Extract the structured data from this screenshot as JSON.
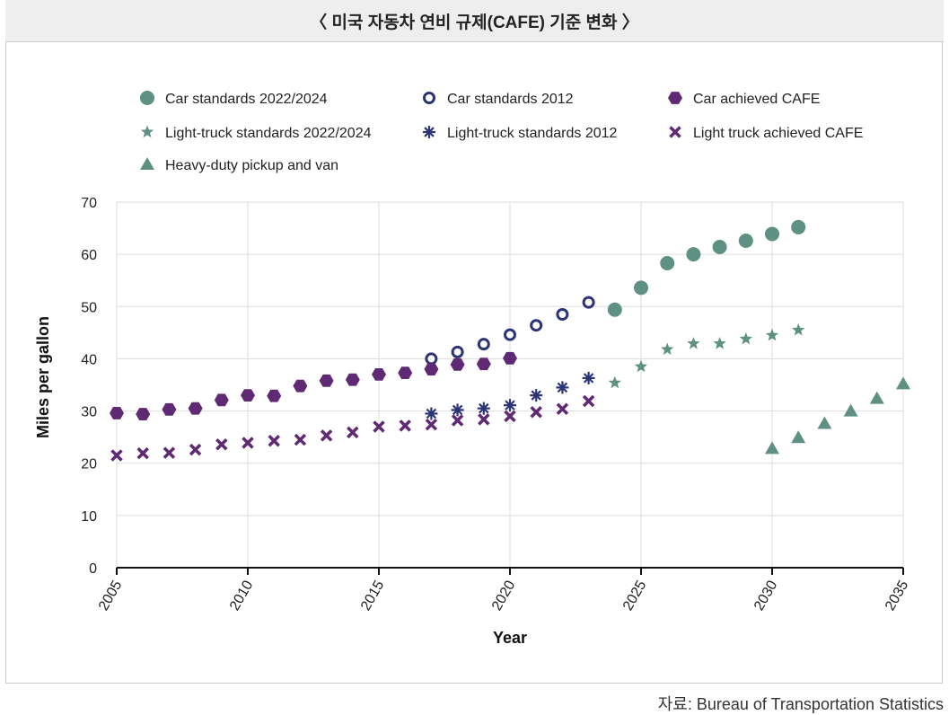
{
  "header": {
    "title": "〈 미국 자동차 연비 규제(CAFE) 기준 변화 〉"
  },
  "source": {
    "text": "자료: Bureau of Transportation Statistics"
  },
  "colors": {
    "teal": "#5e9183",
    "navy": "#2b3576",
    "purple": "#5f2a73",
    "grid": "#dddddd",
    "axis": "#111111"
  },
  "chart_data": {
    "type": "scatter",
    "title": "",
    "xlabel": "Year",
    "ylabel": "Miles per gallon",
    "xlim": [
      2005,
      2035
    ],
    "ylim": [
      0,
      70
    ],
    "xticks": [
      2005,
      2010,
      2015,
      2020,
      2025,
      2030,
      2035
    ],
    "yticks": [
      0,
      10,
      20,
      30,
      40,
      50,
      60,
      70
    ],
    "grid": true,
    "legend_placement": "top",
    "series": [
      {
        "name": "Car standards 2022/2024",
        "marker": "circle-filled",
        "color": "#5e9183",
        "points": [
          [
            2024,
            49.4
          ],
          [
            2025,
            53.6
          ],
          [
            2026,
            58.3
          ],
          [
            2027,
            60.0
          ],
          [
            2028,
            61.4
          ],
          [
            2029,
            62.6
          ],
          [
            2030,
            63.9
          ],
          [
            2031,
            65.2
          ]
        ]
      },
      {
        "name": "Car standards 2012",
        "marker": "circle-open",
        "color": "#2b3576",
        "points": [
          [
            2017,
            40.0
          ],
          [
            2018,
            41.3
          ],
          [
            2019,
            42.8
          ],
          [
            2020,
            44.6
          ],
          [
            2021,
            46.4
          ],
          [
            2022,
            48.5
          ],
          [
            2023,
            50.8
          ]
        ]
      },
      {
        "name": "Car achieved CAFE",
        "marker": "hexagon-filled",
        "color": "#5f2a73",
        "points": [
          [
            2005,
            29.6
          ],
          [
            2006,
            29.4
          ],
          [
            2007,
            30.3
          ],
          [
            2008,
            30.5
          ],
          [
            2009,
            32.1
          ],
          [
            2010,
            33.0
          ],
          [
            2011,
            32.9
          ],
          [
            2012,
            34.8
          ],
          [
            2013,
            35.8
          ],
          [
            2014,
            36.0
          ],
          [
            2015,
            37.0
          ],
          [
            2016,
            37.3
          ],
          [
            2017,
            38.0
          ],
          [
            2018,
            38.9
          ],
          [
            2019,
            39.0
          ],
          [
            2020,
            40.1
          ]
        ]
      },
      {
        "name": "Light-truck standards 2022/2024",
        "marker": "star",
        "color": "#5e9183",
        "points": [
          [
            2024,
            35.4
          ],
          [
            2025,
            38.5
          ],
          [
            2026,
            41.8
          ],
          [
            2027,
            42.9
          ],
          [
            2028,
            42.9
          ],
          [
            2029,
            43.8
          ],
          [
            2030,
            44.5
          ],
          [
            2031,
            45.5
          ]
        ]
      },
      {
        "name": "Light-truck standards 2012",
        "marker": "asterisk",
        "color": "#2b3576",
        "points": [
          [
            2017,
            29.5
          ],
          [
            2018,
            30.2
          ],
          [
            2019,
            30.5
          ],
          [
            2020,
            31.1
          ],
          [
            2021,
            33.0
          ],
          [
            2022,
            34.5
          ],
          [
            2023,
            36.3
          ]
        ]
      },
      {
        "name": "Light truck achieved CAFE",
        "marker": "x",
        "color": "#5f2a73",
        "points": [
          [
            2005,
            21.5
          ],
          [
            2006,
            21.9
          ],
          [
            2007,
            22.0
          ],
          [
            2008,
            22.6
          ],
          [
            2009,
            23.6
          ],
          [
            2010,
            23.9
          ],
          [
            2011,
            24.3
          ],
          [
            2012,
            24.5
          ],
          [
            2013,
            25.3
          ],
          [
            2014,
            25.9
          ],
          [
            2015,
            27.0
          ],
          [
            2016,
            27.2
          ],
          [
            2017,
            27.4
          ],
          [
            2018,
            28.2
          ],
          [
            2019,
            28.4
          ],
          [
            2020,
            29.0
          ],
          [
            2021,
            29.8
          ],
          [
            2022,
            30.4
          ],
          [
            2023,
            31.9
          ]
        ]
      },
      {
        "name": "Heavy-duty pickup and van",
        "marker": "triangle",
        "color": "#5e9183",
        "points": [
          [
            2030,
            22.8
          ],
          [
            2031,
            24.9
          ],
          [
            2032,
            27.6
          ],
          [
            2033,
            30.0
          ],
          [
            2034,
            32.4
          ],
          [
            2035,
            35.2
          ]
        ]
      }
    ]
  }
}
